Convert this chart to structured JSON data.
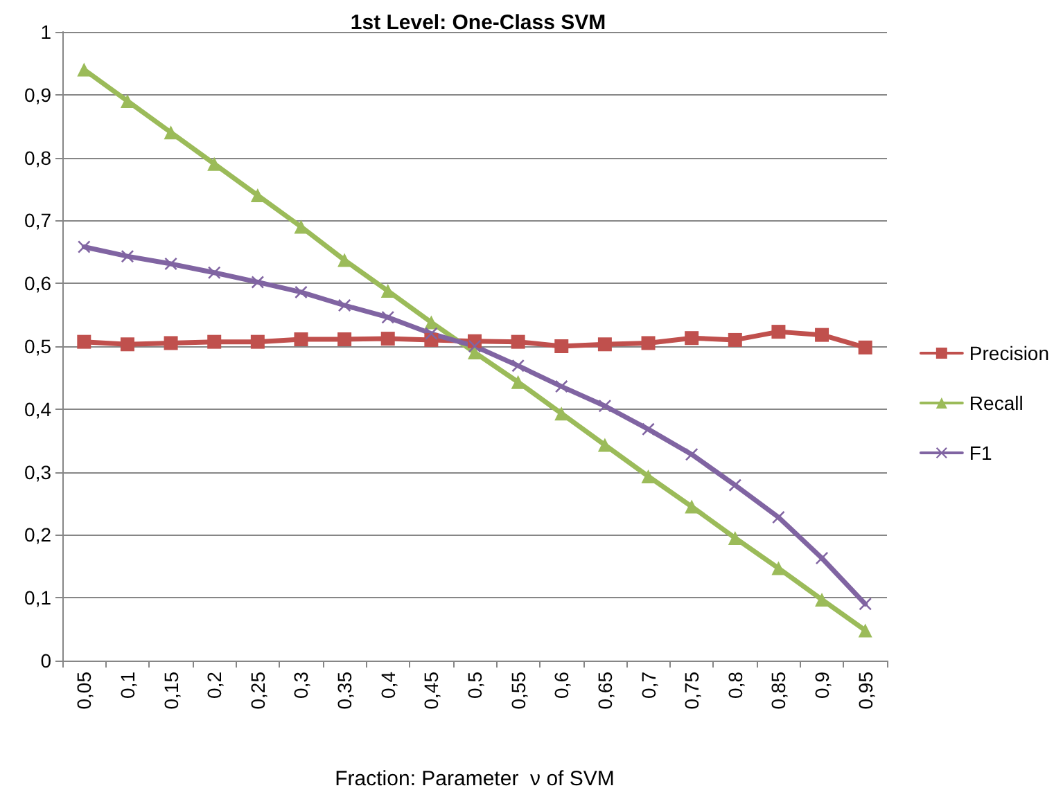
{
  "chart_data": {
    "type": "line",
    "title": "1st Level: One-Class SVM",
    "xlabel": "Fraction: Parameter  ν of SVM",
    "categories": [
      "0,05",
      "0,1",
      "0,15",
      "0,2",
      "0,25",
      "0,3",
      "0,35",
      "0,4",
      "0,45",
      "0,5",
      "0,55",
      "0,6",
      "0,65",
      "0,7",
      "0,75",
      "0,8",
      "0,85",
      "0,9",
      "0,95"
    ],
    "series": [
      {
        "name": "Precision",
        "color": "#c0504d",
        "marker": "square",
        "values": [
          0.507,
          0.503,
          0.505,
          0.507,
          0.507,
          0.511,
          0.511,
          0.512,
          0.51,
          0.508,
          0.507,
          0.5,
          0.503,
          0.505,
          0.513,
          0.51,
          0.523,
          0.518,
          0.498
        ]
      },
      {
        "name": "Recall",
        "color": "#9bbb59",
        "marker": "triangle",
        "values": [
          0.94,
          0.89,
          0.84,
          0.79,
          0.74,
          0.69,
          0.637,
          0.588,
          0.538,
          0.49,
          0.443,
          0.393,
          0.343,
          0.293,
          0.245,
          0.195,
          0.147,
          0.097,
          0.048
        ]
      },
      {
        "name": "F1",
        "color": "#8064a2",
        "marker": "cross",
        "values": [
          0.658,
          0.643,
          0.631,
          0.617,
          0.602,
          0.586,
          0.565,
          0.546,
          0.52,
          0.5,
          0.469,
          0.436,
          0.405,
          0.368,
          0.328,
          0.279,
          0.228,
          0.163,
          0.09
        ]
      }
    ],
    "ylim": [
      0,
      1
    ],
    "yticks": [
      0,
      {
        "value": 0.1,
        "label": "0,1"
      },
      {
        "value": 0.2,
        "label": "0,2"
      },
      {
        "value": 0.3,
        "label": "0,3"
      },
      {
        "value": 0.4,
        "label": "0,4"
      },
      {
        "value": 0.5,
        "label": "0,5"
      },
      {
        "value": 0.6,
        "label": "0,6"
      },
      {
        "value": 0.7,
        "label": "0,7"
      },
      {
        "value": 0.8,
        "label": "0,8"
      },
      {
        "value": 0.9,
        "label": "0,9"
      },
      1
    ],
    "grid": "y",
    "legend": "right",
    "line_style": "solid"
  }
}
